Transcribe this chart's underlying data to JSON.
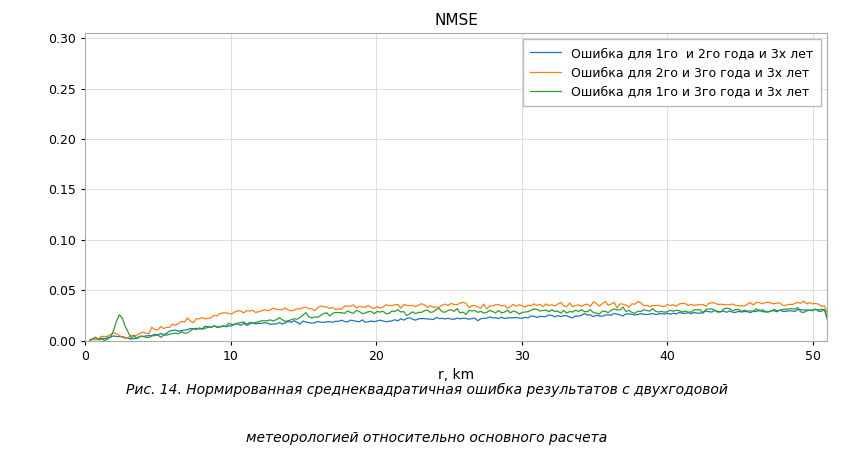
{
  "title": "NMSE",
  "xlabel": "r, km",
  "ylabel": "",
  "xlim": [
    0,
    51
  ],
  "ylim": [
    0,
    0.305
  ],
  "yticks": [
    0.0,
    0.05,
    0.1,
    0.15,
    0.2,
    0.25,
    0.3
  ],
  "xticks": [
    0,
    10,
    20,
    30,
    40,
    50
  ],
  "legend1": "Ошибка для 1го  и 2го года и 3х лет",
  "legend2": "Ошибка для 2го и 3го года и 3х лет",
  "legend3": "Ошибка для 1го и 3го года и 3х лет",
  "color1": "#1f77b4",
  "color2": "#ff7f0e",
  "color3": "#2ca02c",
  "caption_line1": "Рис. 14. Нормированная среднеквадратичная ошибка результатов с двухгодовой",
  "caption_line2": "метеорологией относительно основного расчета",
  "background_color": "#ffffff",
  "fig_width": 8.53,
  "fig_height": 4.73,
  "dpi": 100
}
